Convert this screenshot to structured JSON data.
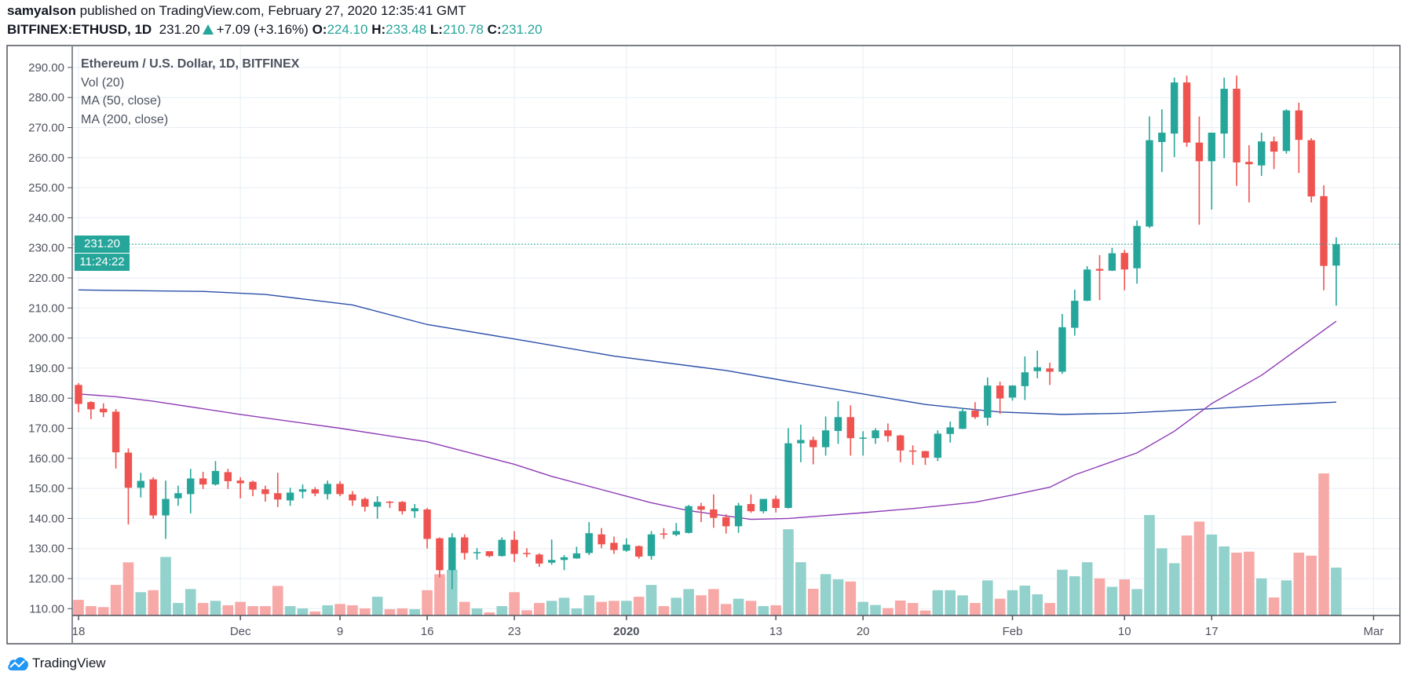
{
  "header": {
    "author": "samyalson",
    "published": " published on TradingView.com, February 27, 2020 12:35:41 GMT",
    "symbol": "BITFINEX:ETHUSD, 1D",
    "last": "231.20",
    "change": "+7.09 (+3.16%)",
    "o_label": "O:",
    "o": "224.10",
    "h_label": "H:",
    "h": "233.48",
    "l_label": "L:",
    "l": "210.78",
    "c_label": "C:",
    "c": "231.20",
    "direction_icon": "triangle-up-icon"
  },
  "legend": {
    "title": "Ethereum / U.S. Dollar, 1D, BITFINEX",
    "vol": "Vol (20)",
    "ma50": "MA (50, close)",
    "ma200": "MA (200, close)"
  },
  "price_labels": {
    "last": "231.20",
    "countdown": "11:24:22"
  },
  "footer": {
    "brand": "TradingView",
    "logo_icon": "tradingview-cloud-icon"
  },
  "colors": {
    "up": "#26a69a",
    "down": "#ef5350",
    "vol_up": "#93d2cc",
    "vol_down": "#f7a9a7",
    "ma50": "#8e3bb5",
    "ma200": "#2a4fa8",
    "grid": "#e7eef4"
  },
  "chart_data": {
    "type": "candlestick",
    "ylim": [
      107.7,
      297.3
    ],
    "y_ticks": [
      "110.00",
      "120.00",
      "130.00",
      "140.00",
      "150.00",
      "160.00",
      "170.00",
      "180.00",
      "190.00",
      "200.00",
      "210.00",
      "220.00",
      "230.00",
      "240.00",
      "250.00",
      "260.00",
      "270.00",
      "280.00",
      "290.00"
    ],
    "x_labels": [
      {
        "date": "2019-11-18",
        "label": "18",
        "bold": false
      },
      {
        "date": "2019-12-01",
        "label": "Dec",
        "bold": false
      },
      {
        "date": "2019-12-09",
        "label": "9",
        "bold": false
      },
      {
        "date": "2019-12-16",
        "label": "16",
        "bold": false
      },
      {
        "date": "2019-12-23",
        "label": "23",
        "bold": false
      },
      {
        "date": "2020-01-01",
        "label": "2020",
        "bold": true
      },
      {
        "date": "2020-01-13",
        "label": "13",
        "bold": false
      },
      {
        "date": "2020-01-20",
        "label": "20",
        "bold": false
      },
      {
        "date": "2020-02-01",
        "label": "Feb",
        "bold": false
      },
      {
        "date": "2020-02-10",
        "label": "10",
        "bold": false
      },
      {
        "date": "2020-02-17",
        "label": "17",
        "bold": false
      },
      {
        "date": "2020-03-01",
        "label": "Mar",
        "bold": false
      }
    ],
    "last_price": 231.2,
    "volume_unit": "percent of largest bar",
    "columns": [
      "date",
      "open",
      "high",
      "low",
      "close",
      "volume"
    ],
    "candles": [
      [
        "2019-11-18",
        184.4,
        185,
        175.3,
        178.1,
        11
      ],
      [
        "2019-11-19",
        178.7,
        179,
        173,
        176.3,
        6.6
      ],
      [
        "2019-11-20",
        176.5,
        178.3,
        173.7,
        175.3,
        5.9
      ],
      [
        "2019-11-21",
        175.5,
        176.4,
        156.6,
        162,
        21.5
      ],
      [
        "2019-11-22",
        161.9,
        163.3,
        138,
        150.2,
        37.4
      ],
      [
        "2019-11-23",
        150.2,
        155.2,
        147,
        152.5,
        16.4
      ],
      [
        "2019-11-24",
        153,
        153.7,
        139.9,
        141,
        17.8
      ],
      [
        "2019-11-25",
        141,
        152.6,
        133.2,
        146.5,
        41.2
      ],
      [
        "2019-11-26",
        146.7,
        150.9,
        144.2,
        148.4,
        8.8
      ],
      [
        "2019-11-27",
        148.1,
        156.5,
        141.7,
        153.3,
        18.6
      ],
      [
        "2019-11-28",
        153.3,
        155.5,
        149.8,
        151.3,
        8.8
      ],
      [
        "2019-11-29",
        151.3,
        159.1,
        150.9,
        155.8,
        10.3
      ],
      [
        "2019-11-30",
        155.4,
        156.5,
        149.8,
        152.4,
        7.2
      ],
      [
        "2019-12-01",
        152.6,
        153.7,
        146.7,
        151.7,
        9.6
      ],
      [
        "2019-12-02",
        152.2,
        152.6,
        147.4,
        149.6,
        6.6
      ],
      [
        "2019-12-03",
        149.7,
        150.9,
        145.6,
        148.1,
        6.6
      ],
      [
        "2019-12-04",
        148.4,
        155.2,
        143.8,
        146.3,
        20.8
      ],
      [
        "2019-12-05",
        146,
        150.2,
        144.2,
        148.6,
        6.6
      ],
      [
        "2019-12-06",
        148.9,
        151.3,
        146.7,
        149.7,
        5
      ],
      [
        "2019-12-07",
        149.7,
        150.4,
        147.4,
        148.3,
        2.8
      ],
      [
        "2019-12-08",
        148.1,
        152.6,
        146.3,
        151.5,
        7.2
      ],
      [
        "2019-12-09",
        151.5,
        152.4,
        147.4,
        148.1,
        8.1
      ],
      [
        "2019-12-10",
        148,
        149.1,
        144.2,
        146,
        7.2
      ],
      [
        "2019-12-11",
        146.5,
        147,
        142.3,
        143.9,
        5
      ],
      [
        "2019-12-12",
        143.9,
        147.4,
        139.9,
        145.5,
        13.2
      ],
      [
        "2019-12-13",
        145.6,
        145.8,
        143.5,
        145.2,
        4.4
      ],
      [
        "2019-12-14",
        145.5,
        145.8,
        141.3,
        142.4,
        5
      ],
      [
        "2019-12-15",
        142.4,
        144.8,
        140.2,
        143.4,
        4.4
      ],
      [
        "2019-12-16",
        143,
        143.5,
        130,
        133.2,
        17.8
      ],
      [
        "2019-12-17",
        133.4,
        133.7,
        120.4,
        122.8,
        29
      ],
      [
        "2019-12-18",
        122.8,
        135.1,
        116.5,
        133.7,
        32.2
      ],
      [
        "2019-12-19",
        133.7,
        134.7,
        126.3,
        128.5,
        9.6
      ],
      [
        "2019-12-20",
        128.6,
        130.1,
        126.3,
        128.8,
        5
      ],
      [
        "2019-12-21",
        129.1,
        129.1,
        127.1,
        127.5,
        2.2
      ],
      [
        "2019-12-22",
        127.5,
        133.7,
        127.3,
        132.9,
        6.6
      ],
      [
        "2019-12-23",
        132.9,
        135.8,
        125.5,
        128.2,
        16.4
      ],
      [
        "2019-12-24",
        128.5,
        130.1,
        127.1,
        128.2,
        3.7
      ],
      [
        "2019-12-25",
        128,
        128.4,
        123.9,
        125,
        8.8
      ],
      [
        "2019-12-26",
        125.3,
        133,
        124.6,
        126.2,
        10.3
      ],
      [
        "2019-12-27",
        126.2,
        127.8,
        122.8,
        127.1,
        12.5
      ],
      [
        "2019-12-28",
        126.7,
        130.6,
        126.6,
        128.4,
        5
      ],
      [
        "2019-12-29",
        128.5,
        138.8,
        127.8,
        135.1,
        14.2
      ],
      [
        "2019-12-30",
        134.7,
        136.8,
        130.1,
        131.4,
        9.6
      ],
      [
        "2019-12-31",
        131.9,
        134,
        128.2,
        129.5,
        10.3
      ],
      [
        "2020-01-01",
        129.3,
        133.4,
        128.9,
        131.3,
        10.3
      ],
      [
        "2020-01-02",
        130.8,
        131,
        126.6,
        127.3,
        13.2
      ],
      [
        "2020-01-03",
        127.5,
        135.8,
        126.3,
        134.7,
        21.5
      ],
      [
        "2020-01-04",
        135,
        136.8,
        133.2,
        134.6,
        6.6
      ],
      [
        "2020-01-05",
        134.6,
        138.5,
        134.1,
        135.8,
        12.5
      ],
      [
        "2020-01-06",
        135.2,
        144.5,
        135,
        144.1,
        18.6
      ],
      [
        "2020-01-07",
        144.1,
        145.2,
        138.8,
        142.9,
        14.2
      ],
      [
        "2020-01-08",
        143,
        148,
        136.9,
        140.2,
        18.6
      ],
      [
        "2020-01-09",
        140.4,
        141.4,
        135,
        137.4,
        8.1
      ],
      [
        "2020-01-10",
        137.4,
        145.2,
        135.2,
        144.3,
        11.8
      ],
      [
        "2020-01-11",
        144.8,
        148,
        141.9,
        142.4,
        10.3
      ],
      [
        "2020-01-12",
        142.4,
        146.5,
        141.7,
        146.5,
        6.6
      ],
      [
        "2020-01-13",
        146.5,
        147.6,
        142,
        143.5,
        7.2
      ],
      [
        "2020-01-14",
        143.5,
        170,
        143.3,
        165,
        60.7
      ],
      [
        "2020-01-15",
        165,
        171.2,
        158.7,
        166.1,
        37.5
      ],
      [
        "2020-01-16",
        166.1,
        167.2,
        158,
        163.7,
        18.8
      ],
      [
        "2020-01-17",
        163.7,
        173.9,
        160.9,
        169.3,
        29.1
      ],
      [
        "2020-01-18",
        169.1,
        179,
        164.8,
        173.7,
        25.4
      ],
      [
        "2020-01-19",
        173.7,
        177.6,
        160.9,
        166.7,
        23.9
      ],
      [
        "2020-01-20",
        166.7,
        169,
        160.9,
        166.9,
        9.6
      ],
      [
        "2020-01-21",
        166.7,
        170,
        164.8,
        169.3,
        7.4
      ],
      [
        "2020-01-22",
        169.3,
        171.6,
        165.5,
        167.4,
        5.2
      ],
      [
        "2020-01-23",
        167.6,
        167.8,
        158.7,
        162.6,
        10.5
      ],
      [
        "2020-01-24",
        162.6,
        164.3,
        157.8,
        162.4,
        8.8
      ],
      [
        "2020-01-25",
        162.4,
        162.5,
        157.8,
        160.2,
        3.5
      ],
      [
        "2020-01-26",
        160.2,
        169.3,
        159.1,
        168.2,
        17.8
      ],
      [
        "2020-01-27",
        168.1,
        172.2,
        165.2,
        170.3,
        17.8
      ],
      [
        "2020-01-28",
        169.8,
        176.8,
        169.7,
        175.7,
        14.2
      ],
      [
        "2020-01-29",
        175.9,
        178.7,
        173.1,
        173.7,
        8.8
      ],
      [
        "2020-01-30",
        173.5,
        186.9,
        170.9,
        184.2,
        24.7
      ],
      [
        "2020-01-31",
        184.2,
        185.5,
        174.8,
        179.9,
        11.8
      ],
      [
        "2020-02-01",
        180.2,
        184.3,
        179.2,
        184.2,
        17.8
      ],
      [
        "2020-02-02",
        184,
        193.9,
        179.4,
        188.6,
        21
      ],
      [
        "2020-02-03",
        189,
        195.8,
        186.6,
        190.3,
        14.9
      ],
      [
        "2020-02-04",
        189.9,
        191.8,
        184.4,
        188.8,
        8.8
      ],
      [
        "2020-02-05",
        188.8,
        208,
        188.1,
        203.6,
        32.2
      ],
      [
        "2020-02-06",
        203.4,
        216.1,
        200.8,
        212.4,
        27.6
      ],
      [
        "2020-02-07",
        212.4,
        223.9,
        212.3,
        222.8,
        37.5
      ],
      [
        "2020-02-08",
        223,
        227.6,
        212.6,
        222.4,
        26.1
      ],
      [
        "2020-02-09",
        222.4,
        230,
        222.3,
        228.2,
        20.2
      ],
      [
        "2020-02-10",
        228.3,
        229.3,
        215.9,
        222.8,
        25.4
      ],
      [
        "2020-02-11",
        223.2,
        239.1,
        218.1,
        237.3,
        18.6
      ],
      [
        "2020-02-12",
        237.1,
        273.7,
        236.6,
        265.8,
        70.7
      ],
      [
        "2020-02-13",
        265.2,
        276.1,
        255.2,
        268.3,
        47.3
      ],
      [
        "2020-02-14",
        268,
        286.6,
        260.2,
        285,
        36.8
      ],
      [
        "2020-02-15",
        285,
        287.3,
        263.6,
        265,
        56.3
      ],
      [
        "2020-02-16",
        265,
        273.7,
        237.7,
        258.8,
        66.1
      ],
      [
        "2020-02-17",
        258.8,
        268.3,
        242.7,
        268.3,
        57
      ],
      [
        "2020-02-18",
        268,
        286.6,
        259.8,
        282.9,
        48.6
      ],
      [
        "2020-02-19",
        282.9,
        287.3,
        250.6,
        258.4,
        44.2
      ],
      [
        "2020-02-20",
        258.6,
        264.1,
        245.1,
        257.8,
        44.9
      ],
      [
        "2020-02-21",
        257.4,
        268.3,
        253.9,
        265.4,
        26.1
      ],
      [
        "2020-02-22",
        265.4,
        267,
        256.2,
        262,
        12.7
      ],
      [
        "2020-02-23",
        262.2,
        276.1,
        261.3,
        275.7,
        24.7
      ],
      [
        "2020-02-24",
        275.7,
        278.3,
        254.9,
        265.9,
        44.2
      ],
      [
        "2020-02-25",
        265.8,
        266.5,
        245.1,
        247.1,
        42.1
      ],
      [
        "2020-02-26",
        247.2,
        250.8,
        215.9,
        224,
        100
      ],
      [
        "2020-02-27",
        224.1,
        233.48,
        210.78,
        231.2,
        33.7
      ]
    ],
    "ma50": [
      [
        "2019-11-18",
        181.4
      ],
      [
        "2019-11-21",
        180.5
      ],
      [
        "2019-11-24",
        179
      ],
      [
        "2019-12-01",
        174.6
      ],
      [
        "2019-12-09",
        170
      ],
      [
        "2019-12-16",
        165.5
      ],
      [
        "2019-12-23",
        158
      ],
      [
        "2019-12-26",
        154
      ],
      [
        "2020-01-01",
        147.4
      ],
      [
        "2020-01-03",
        145.2
      ],
      [
        "2020-01-06",
        142.6
      ],
      [
        "2020-01-11",
        139.7
      ],
      [
        "2020-01-14",
        140
      ],
      [
        "2020-01-20",
        141.9
      ],
      [
        "2020-01-24",
        143.3
      ],
      [
        "2020-01-29",
        145.4
      ],
      [
        "2020-02-01",
        147.8
      ],
      [
        "2020-02-04",
        150.4
      ],
      [
        "2020-02-06",
        154.5
      ],
      [
        "2020-02-11",
        161.8
      ],
      [
        "2020-02-14",
        169
      ],
      [
        "2020-02-17",
        178.2
      ],
      [
        "2020-02-21",
        187.6
      ],
      [
        "2020-02-27",
        205.6
      ]
    ],
    "ma200": [
      [
        "2019-11-18",
        216
      ],
      [
        "2019-11-28",
        215.5
      ],
      [
        "2019-12-03",
        214.5
      ],
      [
        "2019-12-10",
        211
      ],
      [
        "2019-12-16",
        204.5
      ],
      [
        "2019-12-24",
        199
      ],
      [
        "2019-12-31",
        194
      ],
      [
        "2020-01-09",
        189.2
      ],
      [
        "2020-01-14",
        185.6
      ],
      [
        "2020-01-20",
        181.4
      ],
      [
        "2020-01-25",
        177.9
      ],
      [
        "2020-01-28",
        176.6
      ],
      [
        "2020-01-31",
        175.4
      ],
      [
        "2020-02-05",
        174.6
      ],
      [
        "2020-02-10",
        175
      ],
      [
        "2020-02-17",
        176.5
      ],
      [
        "2020-02-21",
        177.5
      ],
      [
        "2020-02-27",
        178.7
      ]
    ]
  }
}
